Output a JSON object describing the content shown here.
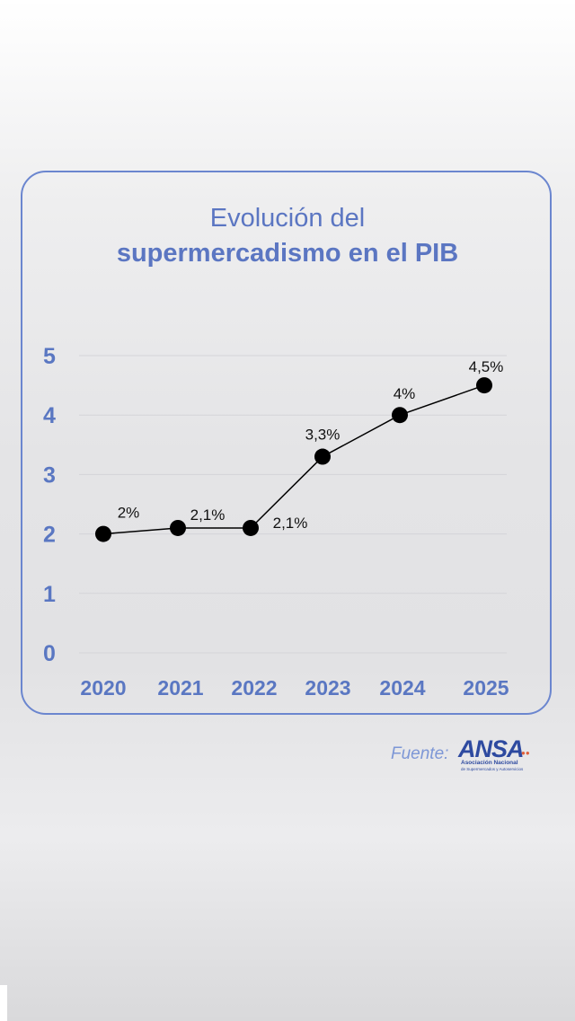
{
  "header": {
    "title_line1": "Evolución del",
    "title_line2": "supermercadismo en el PIB"
  },
  "source": {
    "label": "Fuente:",
    "logo_text": "ANSA",
    "logo_subtitle": "Asociación Nacional",
    "logo_subtitle2": "de Supermercados y Autoservicios"
  },
  "colors": {
    "accent": "#5b76c2",
    "axis_labels": "#5a77c2",
    "card_border": "#6b86cf",
    "line": "#000000",
    "marker": "#000000",
    "gridline": "#d4d4d8"
  },
  "chart_data": {
    "type": "line",
    "categories": [
      "2020",
      "2021",
      "2022",
      "2023",
      "2024",
      "2025"
    ],
    "values": [
      2,
      2.1,
      2.1,
      3.3,
      4,
      4.5
    ],
    "data_labels": [
      "2%",
      "2,1%",
      "2,1%",
      "3,3%",
      "4%",
      "4,5%"
    ],
    "yticks": [
      "0",
      "1",
      "2",
      "3",
      "4",
      "5"
    ],
    "ylim": [
      0,
      5
    ],
    "grid": true,
    "legend": "none"
  }
}
